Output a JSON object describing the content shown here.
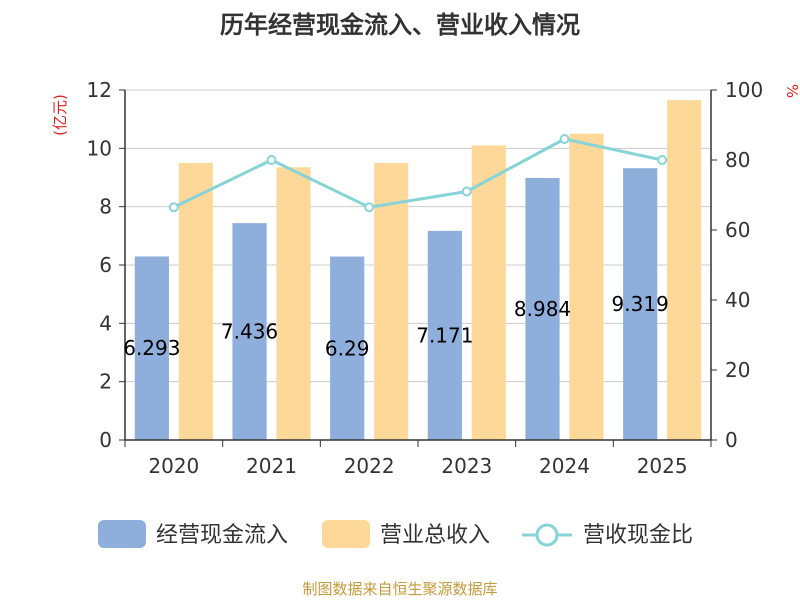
{
  "chart_data": {
    "type": "bar",
    "title": "历年经营现金流入、营业收入情况",
    "categories": [
      "2020",
      "2021",
      "2022",
      "2023",
      "2024",
      "2025"
    ],
    "series": [
      {
        "name": "经营现金流入",
        "axis": "left",
        "type": "bar",
        "color": "#8eaedb",
        "values": [
          6.293,
          7.436,
          6.29,
          7.171,
          8.984,
          9.319
        ]
      },
      {
        "name": "营业总收入",
        "axis": "left",
        "type": "bar",
        "color": "#fed898",
        "values": [
          9.5,
          9.35,
          9.5,
          10.1,
          10.5,
          11.65
        ]
      },
      {
        "name": "营收现金比",
        "axis": "right",
        "type": "line",
        "color": "#86d3d8",
        "values": [
          66.5,
          80,
          66.5,
          71,
          86,
          80
        ]
      }
    ],
    "data_labels": [
      "6.293",
      "7.436",
      "6.29",
      "7.171",
      "8.984",
      "9.319"
    ],
    "ylabel": "(亿元)",
    "ylim": [
      0,
      12
    ],
    "yticks": [
      "0",
      "2",
      "4",
      "6",
      "8",
      "10",
      "12"
    ],
    "y2label": "%",
    "y2lim": [
      0,
      100
    ],
    "y2ticks": [
      "0",
      "20",
      "40",
      "60",
      "80",
      "100"
    ],
    "grid": true,
    "legend_position": "bottom"
  },
  "source": "制图数据来自恒生聚源数据库"
}
